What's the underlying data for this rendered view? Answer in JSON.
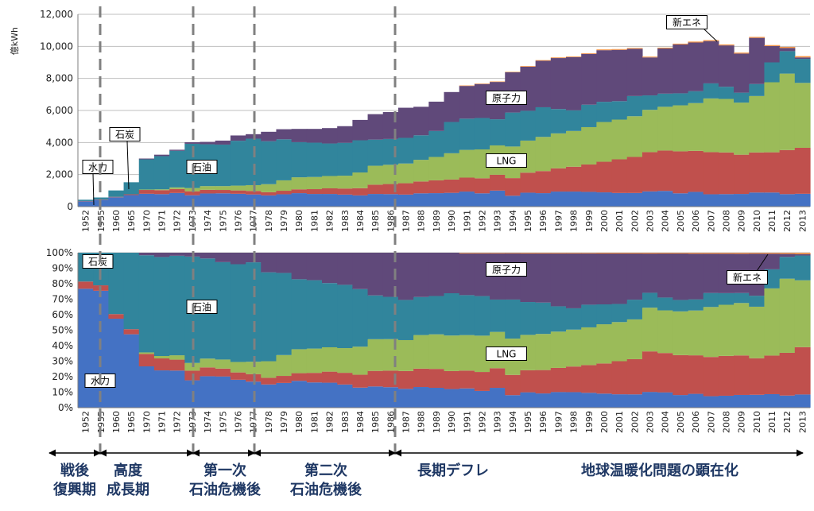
{
  "chart_data": [
    {
      "type": "area",
      "stacked": true,
      "ylabel": "億kWh",
      "ylim": [
        0,
        12000
      ],
      "yticks": [
        "0",
        "2,000",
        "4,000",
        "6,000",
        "8,000",
        "10,000",
        "12,000"
      ],
      "grid": true,
      "categories": [
        "1952",
        "1955",
        "1960",
        "1965",
        "1970",
        "1971",
        "1972",
        "1973",
        "1974",
        "1975",
        "1976",
        "1977",
        "1978",
        "1979",
        "1980",
        "1981",
        "1982",
        "1983",
        "1984",
        "1985",
        "1986",
        "1987",
        "1988",
        "1989",
        "1990",
        "1991",
        "1992",
        "1993",
        "1994",
        "1995",
        "1996",
        "1997",
        "1998",
        "1999",
        "2000",
        "2001",
        "2002",
        "2003",
        "2004",
        "2005",
        "2006",
        "2007",
        "2008",
        "2009",
        "2010",
        "2011",
        "2012",
        "2013"
      ],
      "series": [
        {
          "name": "水力",
          "color": "#4472C4",
          "values": [
            330,
            430,
            580,
            720,
            800,
            780,
            850,
            710,
            820,
            830,
            800,
            760,
            700,
            770,
            840,
            790,
            790,
            750,
            700,
            790,
            780,
            750,
            830,
            840,
            860,
            940,
            830,
            1000,
            680,
            870,
            840,
            940,
            940,
            920,
            890,
            850,
            850,
            950,
            980,
            830,
            920,
            770,
            780,
            790,
            880,
            880,
            780,
            800
          ]
        },
        {
          "name": "石炭",
          "color": "#C0504D",
          "values": [
            20,
            20,
            30,
            50,
            240,
            250,
            250,
            250,
            230,
            210,
            210,
            220,
            200,
            220,
            240,
            300,
            350,
            380,
            450,
            580,
            630,
            710,
            740,
            800,
            830,
            870,
            940,
            990,
            1100,
            1250,
            1380,
            1450,
            1550,
            1710,
            1910,
            2100,
            2250,
            2450,
            2520,
            2620,
            2560,
            2630,
            2600,
            2450,
            2500,
            2510,
            2750,
            2870
          ]
        },
        {
          "name": "LNG",
          "color": "#9BBB59",
          "values": [
            0,
            0,
            0,
            0,
            30,
            50,
            100,
            200,
            230,
            240,
            300,
            360,
            500,
            650,
            750,
            760,
            770,
            800,
            980,
            1180,
            1200,
            1230,
            1350,
            1460,
            1640,
            1730,
            1800,
            1830,
            1970,
            2000,
            2130,
            2180,
            2230,
            2330,
            2480,
            2480,
            2540,
            2640,
            2730,
            2870,
            2980,
            3350,
            3340,
            3250,
            3520,
            4370,
            4770,
            4050
          ]
        },
        {
          "name": "石油",
          "color": "#31859C",
          "values": [
            80,
            120,
            400,
            750,
            1880,
            2070,
            2280,
            2760,
            2610,
            2590,
            2800,
            2900,
            2680,
            2560,
            2190,
            2140,
            2030,
            2050,
            2010,
            1630,
            1610,
            1600,
            1530,
            1620,
            1950,
            1950,
            1960,
            1630,
            2120,
            1860,
            1850,
            1520,
            1290,
            1400,
            1260,
            1150,
            1260,
            900,
            820,
            750,
            740,
            940,
            760,
            620,
            750,
            1240,
            1400,
            1500
          ]
        },
        {
          "name": "原子力",
          "color": "#60497A",
          "values": [
            0,
            0,
            0,
            0,
            50,
            90,
            70,
            100,
            150,
            250,
            330,
            280,
            590,
            630,
            830,
            860,
            960,
            1040,
            1270,
            1590,
            1680,
            1880,
            1780,
            1830,
            1870,
            2040,
            2120,
            2330,
            2510,
            2750,
            2900,
            3180,
            3320,
            3170,
            3220,
            3200,
            2950,
            2370,
            2820,
            3050,
            3040,
            2640,
            2580,
            2440,
            2880,
            1020,
            200,
            90
          ]
        },
        {
          "name": "新エネ",
          "color": "#F79646",
          "values": [
            0,
            0,
            0,
            0,
            0,
            0,
            0,
            0,
            0,
            0,
            0,
            0,
            0,
            0,
            0,
            0,
            0,
            0,
            0,
            0,
            0,
            0,
            0,
            0,
            0,
            30,
            30,
            30,
            30,
            40,
            40,
            40,
            40,
            40,
            50,
            50,
            50,
            50,
            50,
            50,
            60,
            60,
            60,
            60,
            60,
            60,
            70,
            80
          ]
        }
      ],
      "annotations": [
        "水力",
        "石炭",
        "石油",
        "LNG",
        "原子力",
        "新エネ"
      ]
    },
    {
      "type": "area",
      "stacked": true,
      "percent": true,
      "ylim": [
        0,
        100
      ],
      "yticks": [
        "0%",
        "10%",
        "20%",
        "30%",
        "40%",
        "50%",
        "60%",
        "70%",
        "80%",
        "90%",
        "100%"
      ],
      "grid": true,
      "categories": [
        "1952",
        "1955",
        "1960",
        "1965",
        "1970",
        "1971",
        "1972",
        "1973",
        "1974",
        "1975",
        "1976",
        "1977",
        "1978",
        "1979",
        "1980",
        "1981",
        "1982",
        "1983",
        "1984",
        "1985",
        "1986",
        "1987",
        "1988",
        "1989",
        "1990",
        "1991",
        "1992",
        "1993",
        "1994",
        "1995",
        "1996",
        "1997",
        "1998",
        "1999",
        "2000",
        "2001",
        "2002",
        "2003",
        "2004",
        "2005",
        "2006",
        "2007",
        "2008",
        "2009",
        "2010",
        "2011",
        "2012",
        "2013"
      ],
      "same_series_as_upper": true,
      "annotations": [
        "石炭",
        "石油",
        "水力",
        "原子力",
        "LNG",
        "新エネ"
      ]
    }
  ],
  "periods": [
    {
      "label": "戦後",
      "label2": "復興期"
    },
    {
      "label": "高度",
      "label2": "成長期"
    },
    {
      "label": "第一次",
      "label2": "石油危機後"
    },
    {
      "label": "第二次",
      "label2": "石油危機後"
    },
    {
      "label": "長期デフレ",
      "label2": ""
    },
    {
      "label": "地球温暖化問題の顕在化",
      "label2": ""
    }
  ]
}
